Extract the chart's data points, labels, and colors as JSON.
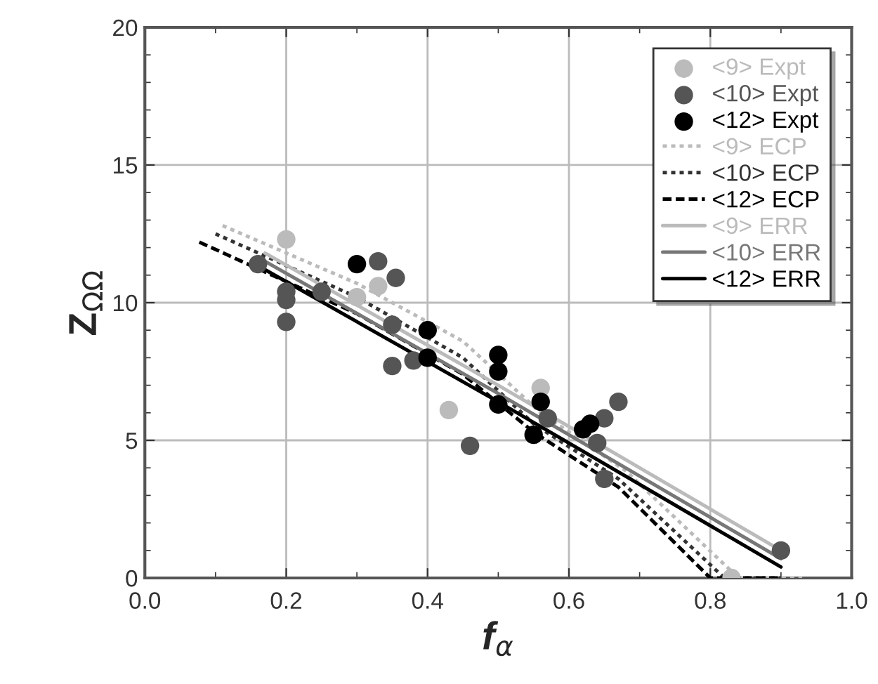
{
  "chart_data": {
    "type": "scatter",
    "xlabel": "f$_{α}$",
    "ylabel": "Z$_{ΩΩ}$",
    "xlim": [
      0.0,
      1.0
    ],
    "ylim": [
      0,
      20
    ],
    "xticks": [
      "0.0",
      0.2,
      0.4,
      0.6,
      0.8,
      "1.0"
    ],
    "yticks": [
      0,
      5,
      10,
      15,
      20
    ],
    "grid": true,
    "legend": "top right",
    "series": [
      {
        "name": "<9> Expt",
        "marker": "circle",
        "color": "#bbbbbb",
        "x": [
          0.2,
          0.33,
          0.3,
          0.43,
          0.56,
          0.83
        ],
        "values": [
          12.3,
          10.6,
          10.2,
          6.1,
          6.9,
          0.0
        ]
      },
      {
        "name": "<10> Expt",
        "marker": "circle",
        "color": "#555555",
        "x": [
          0.16,
          0.2,
          0.2,
          0.2,
          0.25,
          0.33,
          0.355,
          0.35,
          0.38,
          0.35,
          0.46,
          0.57,
          0.64,
          0.65,
          0.67,
          0.65,
          0.9
        ],
        "values": [
          11.4,
          10.4,
          10.1,
          9.3,
          10.4,
          11.5,
          10.9,
          7.7,
          7.9,
          9.2,
          4.8,
          5.8,
          4.9,
          3.6,
          6.4,
          5.8,
          1.0
        ]
      },
      {
        "name": "<12> Expt",
        "marker": "circle",
        "color": "#000000",
        "x": [
          0.3,
          0.4,
          0.4,
          0.5,
          0.5,
          0.5,
          0.56,
          0.55,
          0.62,
          0.63
        ],
        "values": [
          11.4,
          9.0,
          8.0,
          8.1,
          7.5,
          6.3,
          6.4,
          5.2,
          5.4,
          5.6
        ]
      },
      {
        "name": "<9> ECP",
        "type": "line",
        "line_style": "dotted",
        "color": "#bbbbbb",
        "x": [
          0.11,
          0.3,
          0.45,
          0.56,
          0.68,
          0.84,
          0.93
        ],
        "values": [
          12.8,
          10.7,
          8.6,
          6.0,
          3.9,
          0.0,
          0.0
        ]
      },
      {
        "name": "<10> ECP",
        "type": "line",
        "line_style": "dotted",
        "color": "#333333",
        "x": [
          0.1,
          0.3,
          0.45,
          0.55,
          0.67,
          0.82,
          0.9
        ],
        "values": [
          12.5,
          10.2,
          8.0,
          5.6,
          3.6,
          0.0,
          0.0
        ]
      },
      {
        "name": "<12> ECP",
        "type": "line",
        "line_style": "dashed",
        "color": "#000000",
        "x": [
          0.077,
          0.3,
          0.45,
          0.55,
          0.67,
          0.8,
          0.9
        ],
        "values": [
          12.2,
          9.6,
          7.4,
          5.3,
          3.3,
          0.0,
          0.0
        ]
      },
      {
        "name": "<9> ERR",
        "type": "line",
        "line_style": "solid",
        "color": "#bbbbbb",
        "x": [
          0.17,
          0.5,
          0.9
        ],
        "values": [
          11.8,
          7.0,
          1.0
        ]
      },
      {
        "name": "<10> ERR",
        "type": "line",
        "line_style": "solid",
        "color": "#777777",
        "x": [
          0.17,
          0.5,
          0.9
        ],
        "values": [
          11.5,
          6.7,
          0.7
        ]
      },
      {
        "name": "<12> ERR",
        "type": "line",
        "line_style": "solid",
        "color": "#000000",
        "x": [
          0.17,
          0.5,
          0.9
        ],
        "values": [
          11.2,
          6.4,
          0.4
        ]
      }
    ]
  }
}
